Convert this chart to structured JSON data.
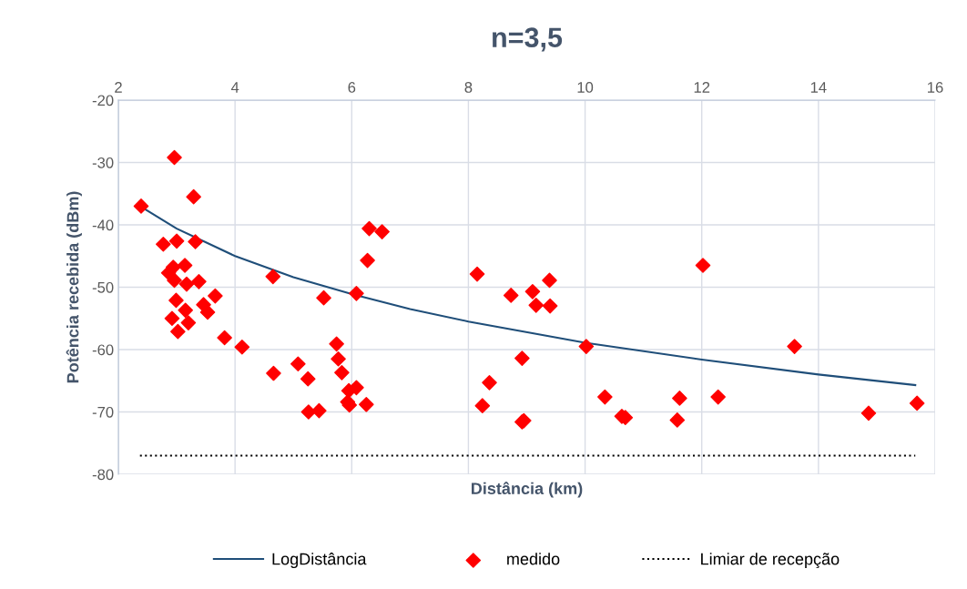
{
  "chart_data": {
    "type": "scatter",
    "title": "n=3,5",
    "xlabel": "Distância (km)",
    "ylabel": "Potência recebida (dBm)",
    "xlim": [
      2,
      16
    ],
    "xticks": [
      2,
      4,
      6,
      8,
      10,
      12,
      14,
      16
    ],
    "ylim": [
      -80,
      -20
    ],
    "yticks": [
      -80,
      -70,
      -60,
      -50,
      -40,
      -30,
      -20
    ],
    "grid": true,
    "legend": "bottom",
    "series": [
      {
        "name": "LogDistância",
        "type": "line",
        "color": "#1f4e79",
        "marker": "none",
        "line_style": "solid",
        "x": [
          2.37,
          3,
          4,
          5,
          6,
          7,
          8,
          10,
          12,
          14,
          15.66
        ],
        "values": [
          -37.0,
          -40.6,
          -45.0,
          -48.4,
          -51.1,
          -53.5,
          -55.5,
          -58.9,
          -61.6,
          -64.0,
          -65.7
        ]
      },
      {
        "name": "medido",
        "color": "#ff0000",
        "marker": "diamond",
        "x": [
          2.39,
          2.96,
          3.29,
          2.77,
          3.0,
          3.32,
          2.94,
          3.14,
          2.86,
          2.96,
          3.17,
          3.38,
          2.99,
          3.15,
          3.46,
          3.53,
          3.66,
          2.92,
          3.2,
          3.02,
          3.82,
          4.12,
          4.65,
          4.66,
          5.08,
          5.25,
          5.26,
          5.44,
          5.52,
          5.74,
          5.77,
          5.83,
          5.95,
          6.08,
          5.96,
          5.93,
          6.25,
          6.08,
          6.27,
          6.3,
          6.52,
          8.15,
          8.73,
          9.1,
          9.16,
          9.39,
          9.4,
          10.02,
          8.92,
          8.36,
          8.24,
          8.92,
          8.95,
          12.02,
          13.59,
          10.34,
          10.63,
          10.69,
          11.58,
          11.62,
          12.28,
          14.86,
          15.69
        ],
        "values": [
          -37.0,
          -29.2,
          -35.5,
          -43.1,
          -42.6,
          -42.7,
          -46.8,
          -46.5,
          -47.7,
          -48.9,
          -49.5,
          -49.1,
          -52.1,
          -53.7,
          -52.8,
          -54.0,
          -51.4,
          -55.0,
          -55.7,
          -57.1,
          -58.1,
          -59.6,
          -48.3,
          -63.8,
          -62.3,
          -64.7,
          -70.0,
          -69.8,
          -51.7,
          -59.1,
          -61.5,
          -63.7,
          -66.6,
          -66.1,
          -68.9,
          -68.4,
          -68.8,
          -51.0,
          -45.7,
          -40.6,
          -41.1,
          -47.9,
          -51.3,
          -50.7,
          -52.9,
          -48.9,
          -53.0,
          -59.5,
          -61.4,
          -65.3,
          -69.0,
          -71.6,
          -71.4,
          -46.5,
          -59.5,
          -67.6,
          -70.7,
          -70.9,
          -71.3,
          -67.8,
          -67.6,
          -70.2,
          -68.6
        ]
      },
      {
        "name": "Limiar de recepção",
        "type": "line",
        "color": "#000000",
        "marker": "none",
        "line_style": "dotted",
        "x": [
          2.37,
          15.66
        ],
        "values": [
          -77,
          -77
        ]
      }
    ]
  }
}
